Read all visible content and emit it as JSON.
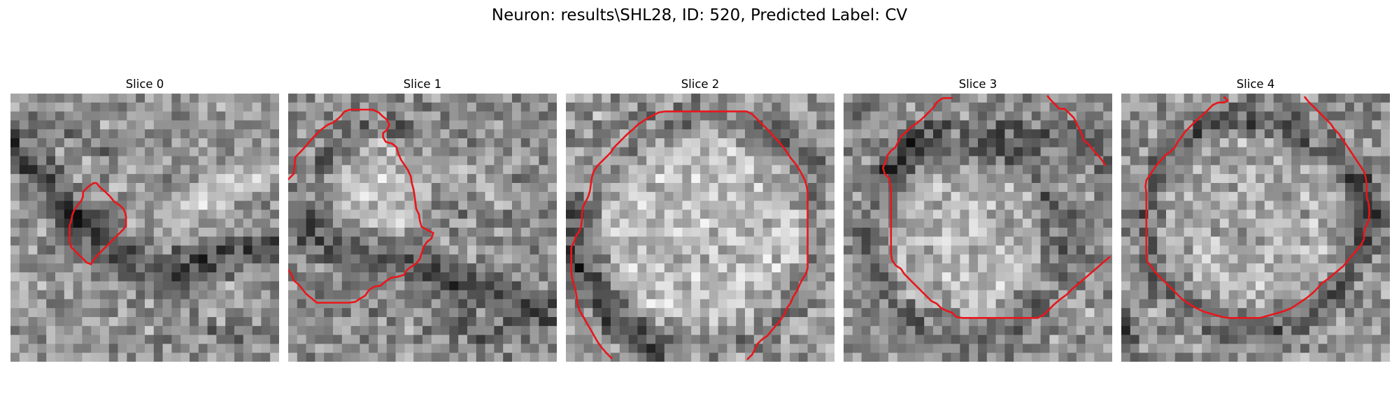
{
  "figure": {
    "title": "Neuron: results\\SHL28, ID: 520, Predicted Label: CV"
  },
  "panels": [
    {
      "title": "Slice 0"
    },
    {
      "title": "Slice 1"
    },
    {
      "title": "Slice 2"
    },
    {
      "title": "Slice 3"
    },
    {
      "title": "Slice 4"
    }
  ],
  "image_style": {
    "colormap": "gray",
    "contour_color": "#e8161b"
  }
}
